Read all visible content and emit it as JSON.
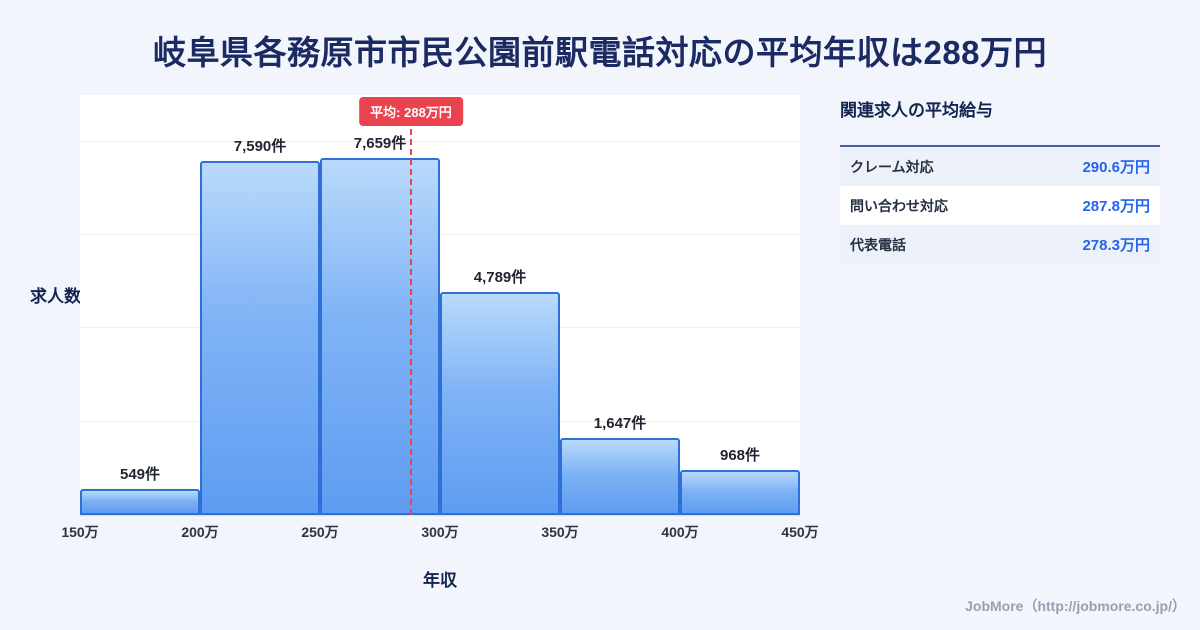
{
  "page": {
    "title": "岐阜県各務原市市民公園前駅電話対応の平均年収は288万円",
    "footer_credit": "JobMore（http://jobmore.co.jp/）"
  },
  "chart_data": {
    "type": "bar",
    "title": "岐阜県各務原市市民公園前駅電話対応の平均年収は288万円",
    "xlabel": "年収",
    "ylabel": "求人数",
    "x_ticks": [
      "150万",
      "200万",
      "250万",
      "300万",
      "350万",
      "400万",
      "450万"
    ],
    "bin_edges_man_yen": [
      150,
      200,
      250,
      300,
      350,
      400,
      450
    ],
    "x_range_man_yen": [
      150,
      450
    ],
    "values": [
      549,
      7590,
      7659,
      4789,
      1647,
      968
    ],
    "value_labels": [
      "549件",
      "7,590件",
      "7,659件",
      "4,789件",
      "1,647件",
      "968件"
    ],
    "ylim": [
      0,
      9000
    ],
    "grid_values": [
      2000,
      4000,
      6000,
      8000
    ],
    "average": {
      "value_man_yen": 288,
      "label": "平均: 288万円"
    }
  },
  "side_panel": {
    "heading": "関連求人の平均給与",
    "rows": [
      {
        "label": "クレーム対応",
        "value": "290.6万円"
      },
      {
        "label": "問い合わせ対応",
        "value": "287.8万円"
      },
      {
        "label": "代表電話",
        "value": "278.3万円"
      }
    ]
  },
  "colors": {
    "background": "#f2f6fc",
    "title_text": "#1b2a63",
    "bar_fill_top": "#b9dafb",
    "bar_fill_bottom": "#5f9cf1",
    "bar_border": "#2f6fd8",
    "average_line": "#e8434e",
    "value_accent": "#2563eb",
    "footer_text": "#96a0b0"
  }
}
